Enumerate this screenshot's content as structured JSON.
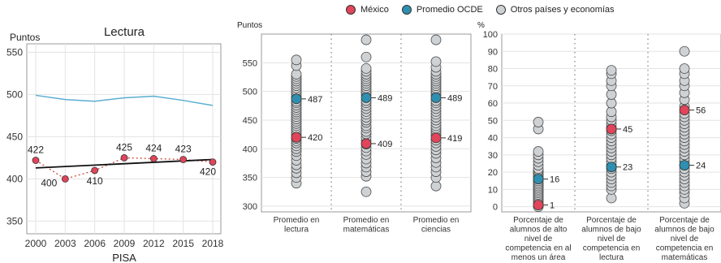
{
  "legend": {
    "items": [
      {
        "label": "México",
        "color": "#e0455a"
      },
      {
        "label": "Promedio OCDE",
        "color": "#2f8fb0"
      },
      {
        "label": "Otros países y economías",
        "color": "#cfd2d4"
      }
    ]
  },
  "chart_data": [
    {
      "type": "line",
      "title": "Lectura",
      "ylabel": "Puntos",
      "xlabel": "PISA",
      "ylim": [
        335,
        560
      ],
      "yticks": [
        350,
        400,
        450,
        500,
        550
      ],
      "x": [
        "2000",
        "2003",
        "2006",
        "2009",
        "2012",
        "2015",
        "2018"
      ],
      "grid": true,
      "series": [
        {
          "values": [
            499,
            494,
            492,
            496,
            498,
            493,
            487
          ],
          "color": "#5aaed0"
        },
        {
          "values": [
            422,
            400,
            410,
            425,
            424,
            423,
            420
          ],
          "color": "#c0392b",
          "labels": [
            "422",
            "400",
            "410",
            "425",
            "424",
            "423",
            "420"
          ]
        }
      ],
      "trend": {
        "from": 413,
        "to": 423,
        "color": "#111111"
      }
    },
    {
      "type": "scatter",
      "ylabel": "Puntos",
      "ylim": [
        290,
        600
      ],
      "yticks": [
        300,
        350,
        400,
        450,
        500,
        550
      ],
      "categories": [
        "Promedio en lectura",
        "Promedio en matemáticas",
        "Promedio en ciencias"
      ],
      "others": [
        [
          340,
          350,
          358,
          366,
          372,
          380,
          388,
          395,
          400,
          405,
          410,
          414,
          418,
          424,
          428,
          432,
          436,
          440,
          444,
          448,
          452,
          456,
          460,
          464,
          468,
          472,
          476,
          480,
          483,
          490,
          494,
          498,
          502,
          506,
          510,
          514,
          518,
          522,
          526,
          530,
          545,
          555
        ],
        [
          325,
          352,
          360,
          368,
          375,
          382,
          390,
          396,
          402,
          408,
          414,
          420,
          426,
          430,
          436,
          440,
          446,
          450,
          455,
          460,
          465,
          470,
          475,
          480,
          484,
          494,
          498,
          502,
          506,
          510,
          514,
          518,
          522,
          526,
          530,
          535,
          540,
          560,
          590
        ],
        [
          335,
          350,
          360,
          368,
          376,
          384,
          392,
          398,
          404,
          410,
          415,
          424,
          428,
          432,
          436,
          440,
          445,
          450,
          455,
          460,
          465,
          470,
          475,
          480,
          484,
          494,
          498,
          502,
          506,
          510,
          514,
          518,
          522,
          526,
          530,
          535,
          542,
          552,
          590
        ]
      ],
      "ocde": [
        487,
        489,
        489
      ],
      "mexico": [
        420,
        409,
        419
      ],
      "ocde_labels": [
        "487",
        "489",
        "489"
      ],
      "mexico_labels": [
        "420",
        "409",
        "419"
      ]
    },
    {
      "type": "scatter",
      "ylabel": "%",
      "ylim": [
        -3,
        100
      ],
      "yticks": [
        0,
        10,
        20,
        30,
        40,
        50,
        60,
        70,
        80,
        90,
        100
      ],
      "categories": [
        "Porcentaje de alumnos de alto nivel de competencia en al menos un área",
        "Porcentaje de alumnos de bajo nivel de competencia en lectura",
        "Porcentaje de alumnos de bajo nivel de competencia en matemáticas"
      ],
      "others": [
        [
          0,
          1,
          2,
          3,
          4,
          5,
          6,
          7,
          8,
          9,
          10,
          11,
          12,
          13,
          14,
          15,
          16,
          17,
          18,
          19,
          20,
          21,
          22,
          24,
          26,
          28,
          30,
          32,
          45,
          49
        ],
        [
          5,
          10,
          12,
          14,
          16,
          18,
          20,
          22,
          24,
          26,
          28,
          30,
          32,
          34,
          36,
          38,
          40,
          42,
          44,
          46,
          48,
          50,
          52,
          55,
          60,
          65,
          70,
          73,
          77,
          79
        ],
        [
          2,
          5,
          8,
          10,
          12,
          14,
          16,
          18,
          20,
          22,
          24,
          26,
          28,
          30,
          32,
          34,
          36,
          38,
          40,
          42,
          44,
          46,
          48,
          50,
          52,
          54,
          58,
          62,
          66,
          70,
          73,
          77,
          80,
          90
        ]
      ],
      "ocde": [
        16,
        23,
        24
      ],
      "mexico": [
        1,
        45,
        56
      ],
      "ocde_labels": [
        "16",
        "23",
        "24"
      ],
      "mexico_labels": [
        "1",
        "45",
        "56"
      ]
    }
  ]
}
